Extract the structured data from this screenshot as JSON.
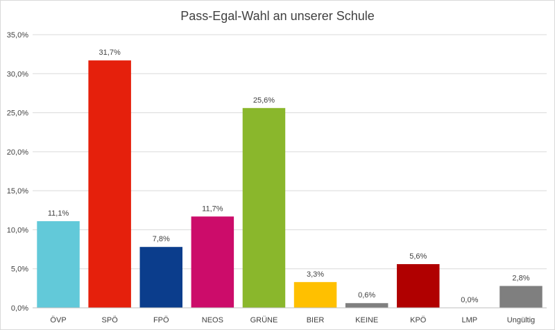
{
  "chart_data": {
    "type": "bar",
    "title": "Pass-Egal-Wahl an unserer Schule",
    "xlabel": "",
    "ylabel": "",
    "categories": [
      "ÖVP",
      "SPÖ",
      "FPÖ",
      "NEOS",
      "GRÜNE",
      "BIER",
      "KEINE",
      "KPÖ",
      "LMP",
      "Ungültig"
    ],
    "values": [
      11.1,
      31.7,
      7.8,
      11.7,
      25.6,
      3.3,
      0.6,
      5.6,
      0.0,
      2.8
    ],
    "value_labels": [
      "11,1%",
      "31,7%",
      "7,8%",
      "11,7%",
      "25,6%",
      "3,3%",
      "0,6%",
      "5,6%",
      "0,0%",
      "2,8%"
    ],
    "colors": [
      "#62c9d9",
      "#e5200c",
      "#0b3d8c",
      "#cc0c6a",
      "#8ab72c",
      "#ffc000",
      "#7f7f7f",
      "#b00000",
      "#d0d0d0",
      "#7f7f7f"
    ],
    "ylim": [
      0,
      35
    ],
    "yticks": [
      0,
      5,
      10,
      15,
      20,
      25,
      30,
      35
    ],
    "ytick_labels": [
      "0,0%",
      "5,0%",
      "10,0%",
      "15,0%",
      "20,0%",
      "25,0%",
      "30,0%",
      "35,0%"
    ],
    "grid": true,
    "legend": "none"
  }
}
